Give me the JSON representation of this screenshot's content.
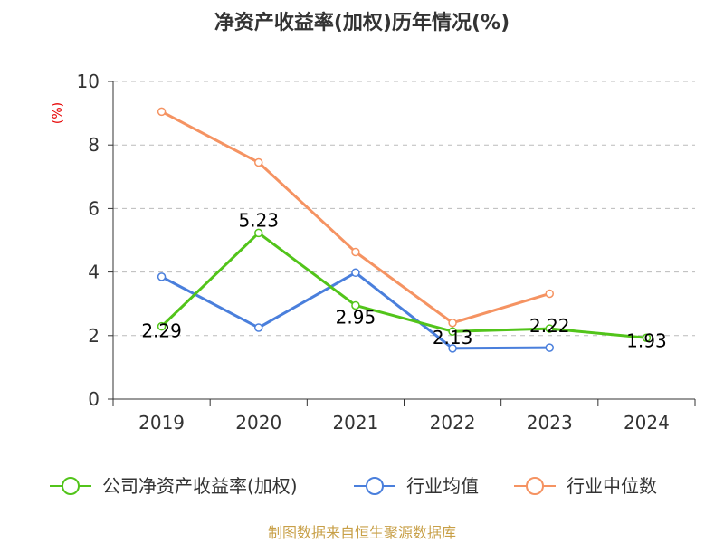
{
  "chart_data": {
    "type": "line",
    "title": "净资产收益率(加权)历年情况(%)",
    "unit_label": "(%)",
    "categories": [
      "2019",
      "2020",
      "2021",
      "2022",
      "2023",
      "2024"
    ],
    "ylim": [
      0,
      10
    ],
    "yticks": [
      0,
      2,
      4,
      6,
      8,
      10
    ],
    "grid": true,
    "legend_position": "bottom",
    "series": [
      {
        "name": "公司净资产收益率(加权)",
        "color": "#52c41a",
        "values": [
          2.29,
          5.23,
          2.95,
          2.13,
          2.22,
          1.93
        ],
        "labels": [
          "2.29",
          "5.23",
          "2.95",
          "2.13",
          "2.22",
          "1.93"
        ]
      },
      {
        "name": "行业均值",
        "color": "#4a7fdc",
        "values": [
          3.85,
          2.25,
          3.98,
          1.6,
          1.62,
          null
        ]
      },
      {
        "name": "行业中位数",
        "color": "#f59362",
        "values": [
          9.05,
          7.45,
          4.63,
          2.4,
          3.32,
          null
        ]
      }
    ]
  },
  "footer": {
    "source": "制图数据来自恒生聚源数据库"
  }
}
